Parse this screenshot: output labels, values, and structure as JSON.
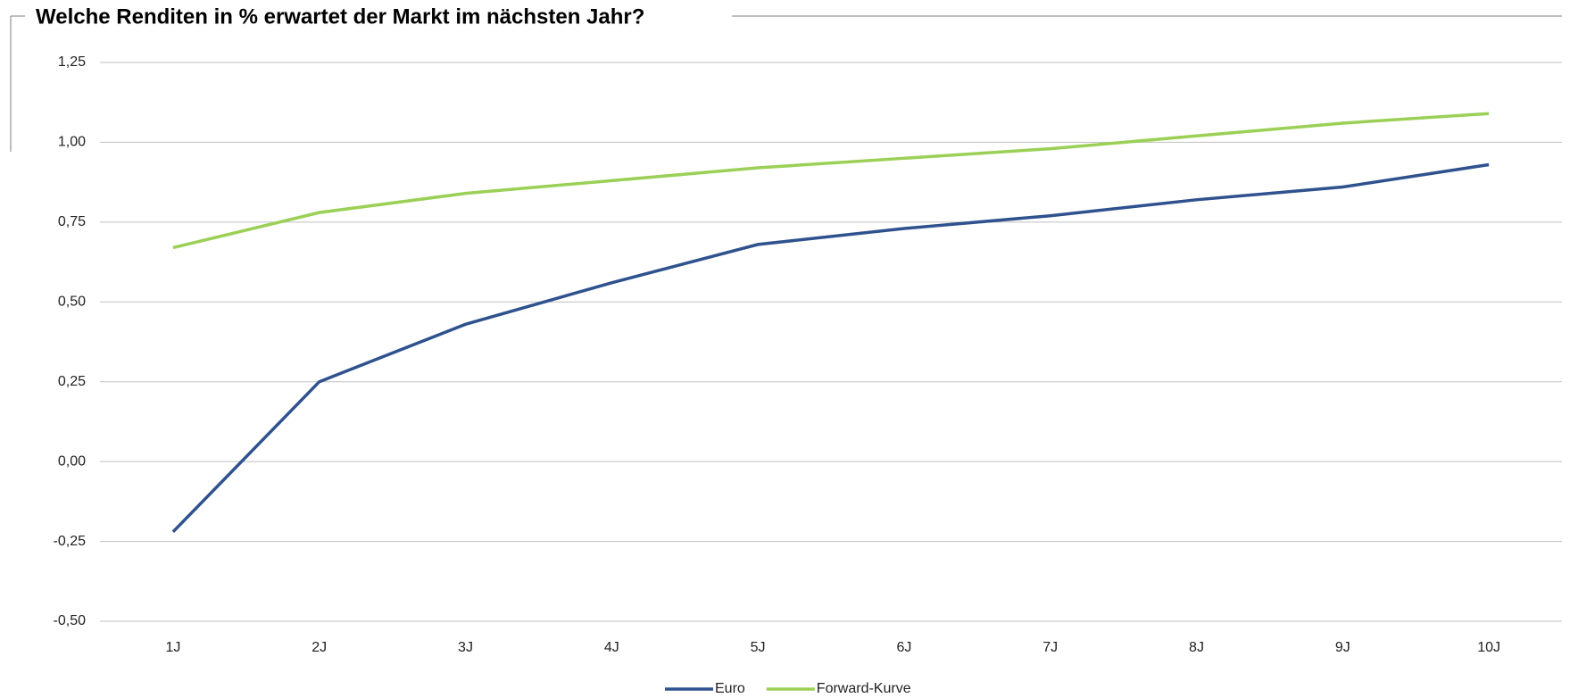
{
  "chart_data": {
    "type": "line",
    "title": "Welche Renditen in % erwartet der Markt im nächsten Jahr?",
    "categories": [
      "1J",
      "2J",
      "3J",
      "4J",
      "5J",
      "6J",
      "7J",
      "8J",
      "9J",
      "10J"
    ],
    "series": [
      {
        "name": "Euro",
        "color": "#2f528f",
        "values": [
          -0.22,
          0.25,
          0.43,
          0.56,
          0.68,
          0.73,
          0.77,
          0.82,
          0.86,
          0.93
        ]
      },
      {
        "name": "Forward-Kurve",
        "color": "#9bd057",
        "values": [
          0.67,
          0.78,
          0.84,
          0.88,
          0.92,
          0.95,
          0.98,
          1.02,
          1.06,
          1.09
        ]
      }
    ],
    "ylim": [
      -0.5,
      1.25
    ],
    "yticks": [
      {
        "value": -0.5,
        "label": "-0,50"
      },
      {
        "value": -0.25,
        "label": "-0,25"
      },
      {
        "value": 0,
        "label": "0,00"
      },
      {
        "value": 0.25,
        "label": "0,25"
      },
      {
        "value": 0.5,
        "label": "0,50"
      },
      {
        "value": 0.75,
        "label": "0,75"
      },
      {
        "value": 1,
        "label": "1,00"
      },
      {
        "value": 1.25,
        "label": "1,25"
      }
    ],
    "grid": true
  }
}
